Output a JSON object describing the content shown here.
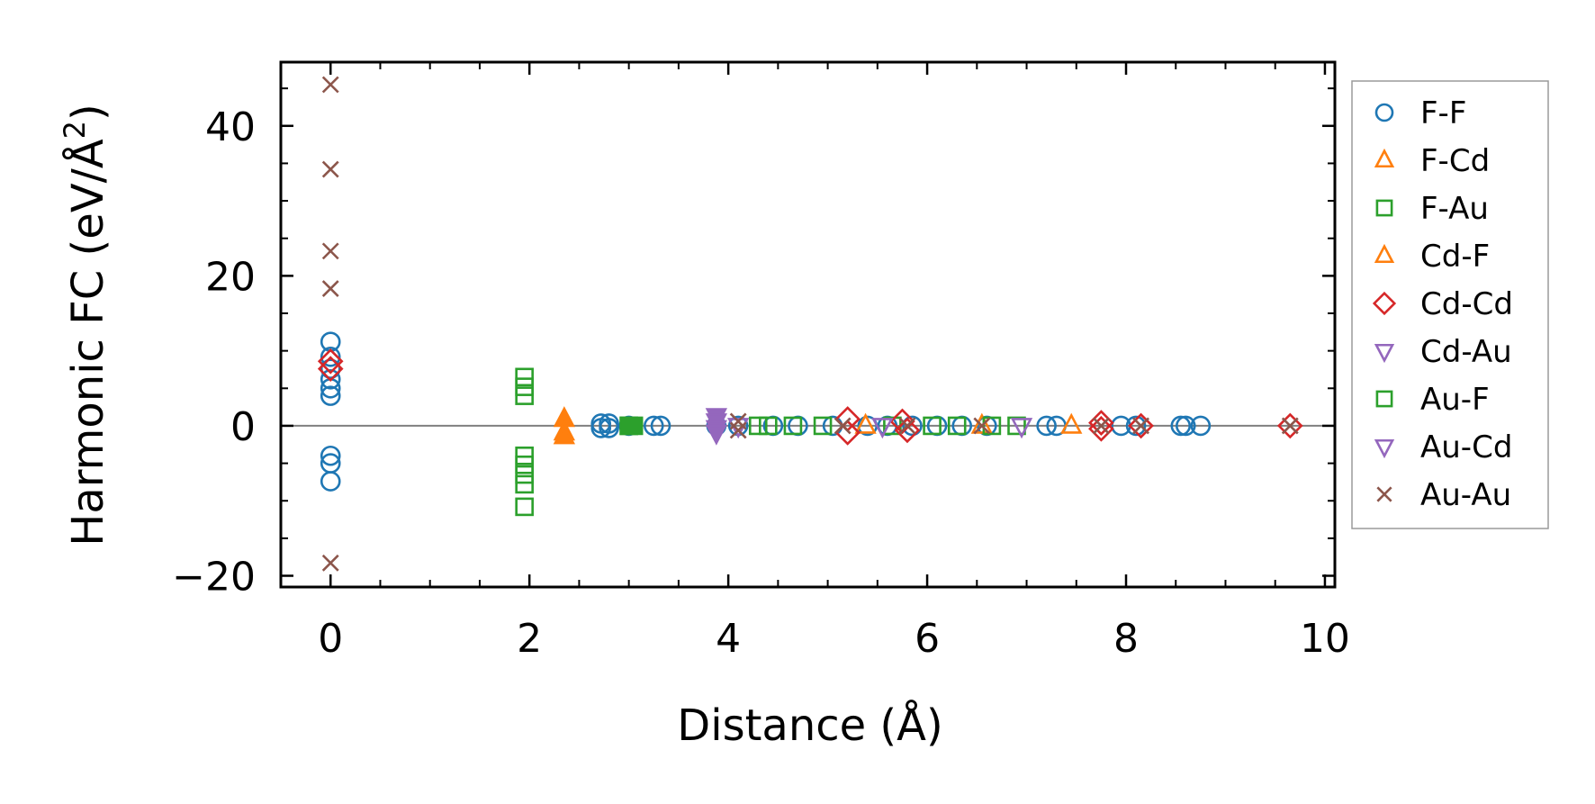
{
  "chart_data": {
    "type": "scatter",
    "xlabel": "Distance (Å)",
    "ylabel": "Harmonic FC (eV/Å",
    "ylabel_sup": "2",
    "ylabel_close": ")",
    "xlim": [
      -0.5,
      10.1
    ],
    "ylim": [
      -21.5,
      48.5
    ],
    "x_ticks": [
      0,
      2,
      4,
      6,
      8,
      10
    ],
    "x_tick_labels": [
      "0",
      "2",
      "4",
      "6",
      "8",
      "10"
    ],
    "y_ticks": [
      -20,
      0,
      20,
      40
    ],
    "y_tick_labels": [
      "−20",
      "0",
      "20",
      "40"
    ],
    "grid": false,
    "zero_line": true,
    "legend_position": "outside right",
    "series": [
      {
        "name": "F-F",
        "marker": "circle",
        "color": "#1f77b4",
        "filled": false,
        "points": [
          [
            0.0,
            11.2
          ],
          [
            0.0,
            9.2
          ],
          [
            0.0,
            7.6
          ],
          [
            0.0,
            6.2
          ],
          [
            0.0,
            5.0
          ],
          [
            0.0,
            4.0
          ],
          [
            0.0,
            -4.0
          ],
          [
            0.0,
            -5.0
          ],
          [
            0.0,
            -7.4
          ],
          [
            2.72,
            0.3
          ],
          [
            2.72,
            -0.3
          ],
          [
            2.8,
            0.3
          ],
          [
            2.8,
            -0.3
          ],
          [
            3.0,
            0.0
          ],
          [
            3.25,
            0.0
          ],
          [
            3.32,
            0.0
          ],
          [
            3.88,
            0.0
          ],
          [
            4.1,
            0.0
          ],
          [
            4.45,
            0.0
          ],
          [
            4.7,
            0.0
          ],
          [
            5.05,
            0.0
          ],
          [
            5.4,
            0.0
          ],
          [
            5.6,
            0.0
          ],
          [
            5.85,
            0.0
          ],
          [
            6.1,
            0.0
          ],
          [
            6.35,
            0.0
          ],
          [
            6.6,
            0.0
          ],
          [
            7.2,
            0.0
          ],
          [
            7.3,
            0.0
          ],
          [
            7.95,
            0.0
          ],
          [
            8.1,
            0.0
          ],
          [
            8.55,
            0.0
          ],
          [
            8.6,
            0.0
          ],
          [
            8.75,
            0.0
          ]
        ]
      },
      {
        "name": "F-Cd",
        "marker": "triangle-up",
        "color": "#ff7f0e",
        "filled": false,
        "points": [
          [
            5.38,
            0.0
          ],
          [
            6.55,
            0.0
          ],
          [
            7.45,
            0.0
          ]
        ]
      },
      {
        "name": "F-Au",
        "marker": "square",
        "color": "#2ca02c",
        "filled": false,
        "points": [
          [
            1.95,
            6.5
          ],
          [
            1.95,
            5.2
          ],
          [
            1.95,
            4.0
          ],
          [
            1.95,
            -4.0
          ],
          [
            1.95,
            -5.2
          ],
          [
            1.95,
            -6.5
          ],
          [
            1.95,
            -7.8
          ],
          [
            1.95,
            -10.8
          ],
          [
            3.0,
            0.0
          ],
          [
            4.3,
            0.0
          ],
          [
            4.4,
            0.0
          ],
          [
            4.65,
            0.0
          ],
          [
            4.95,
            0.0
          ],
          [
            5.65,
            0.0
          ],
          [
            6.05,
            0.0
          ],
          [
            6.3,
            0.0
          ],
          [
            6.65,
            0.0
          ],
          [
            6.9,
            0.0
          ]
        ]
      },
      {
        "name": "Cd-F",
        "marker": "triangle-up",
        "color": "#ff7f0e",
        "filled": true,
        "points": [
          [
            2.35,
            0.9
          ],
          [
            2.35,
            -0.9
          ],
          [
            2.35,
            -1.4
          ]
        ]
      },
      {
        "name": "Cd-Cd",
        "marker": "diamond",
        "color": "#d62728",
        "filled": false,
        "points": [
          [
            0.0,
            8.6
          ],
          [
            0.0,
            7.6
          ],
          [
            5.2,
            0.9
          ],
          [
            5.2,
            -0.9
          ],
          [
            5.75,
            0.6
          ],
          [
            5.8,
            -0.6
          ],
          [
            7.75,
            0.4
          ],
          [
            7.75,
            -0.4
          ],
          [
            8.15,
            0.0
          ],
          [
            9.65,
            0.0
          ]
        ]
      },
      {
        "name": "Cd-Au",
        "marker": "triangle-down",
        "color": "#9467bd",
        "filled": true,
        "points": [
          [
            3.88,
            1.3
          ],
          [
            3.88,
            0.6
          ],
          [
            3.88,
            -0.3
          ],
          [
            3.88,
            -0.9
          ]
        ]
      },
      {
        "name": "Au-F",
        "marker": "square",
        "color": "#2ca02c",
        "filled": true,
        "points": [
          [
            3.0,
            0.0
          ],
          [
            3.05,
            0.0
          ]
        ]
      },
      {
        "name": "Au-Cd",
        "marker": "triangle-down",
        "color": "#9467bd",
        "filled": false,
        "points": [
          [
            4.1,
            0.0
          ],
          [
            5.55,
            0.0
          ],
          [
            6.95,
            0.0
          ]
        ]
      },
      {
        "name": "Au-Au",
        "marker": "x",
        "color": "#8c564b",
        "filled": false,
        "points": [
          [
            0.0,
            45.5
          ],
          [
            0.0,
            34.2
          ],
          [
            0.0,
            23.3
          ],
          [
            0.0,
            18.3
          ],
          [
            0.0,
            -18.3
          ],
          [
            4.1,
            0.6
          ],
          [
            4.1,
            -0.6
          ],
          [
            5.15,
            0.0
          ],
          [
            5.8,
            0.0
          ],
          [
            6.55,
            0.0
          ],
          [
            7.75,
            0.0
          ],
          [
            8.15,
            0.0
          ],
          [
            9.65,
            0.0
          ]
        ]
      }
    ],
    "legend": [
      {
        "name": "F-F",
        "marker": "circle",
        "color": "#1f77b4"
      },
      {
        "name": "F-Cd",
        "marker": "triangle-up",
        "color": "#ff7f0e"
      },
      {
        "name": "F-Au",
        "marker": "square",
        "color": "#2ca02c"
      },
      {
        "name": "Cd-F",
        "marker": "triangle-up",
        "color": "#ff7f0e"
      },
      {
        "name": "Cd-Cd",
        "marker": "diamond",
        "color": "#d62728"
      },
      {
        "name": "Cd-Au",
        "marker": "triangle-down",
        "color": "#9467bd"
      },
      {
        "name": "Au-F",
        "marker": "square",
        "color": "#2ca02c"
      },
      {
        "name": "Au-Cd",
        "marker": "triangle-down",
        "color": "#9467bd"
      },
      {
        "name": "Au-Au",
        "marker": "x",
        "color": "#8c564b"
      }
    ]
  }
}
